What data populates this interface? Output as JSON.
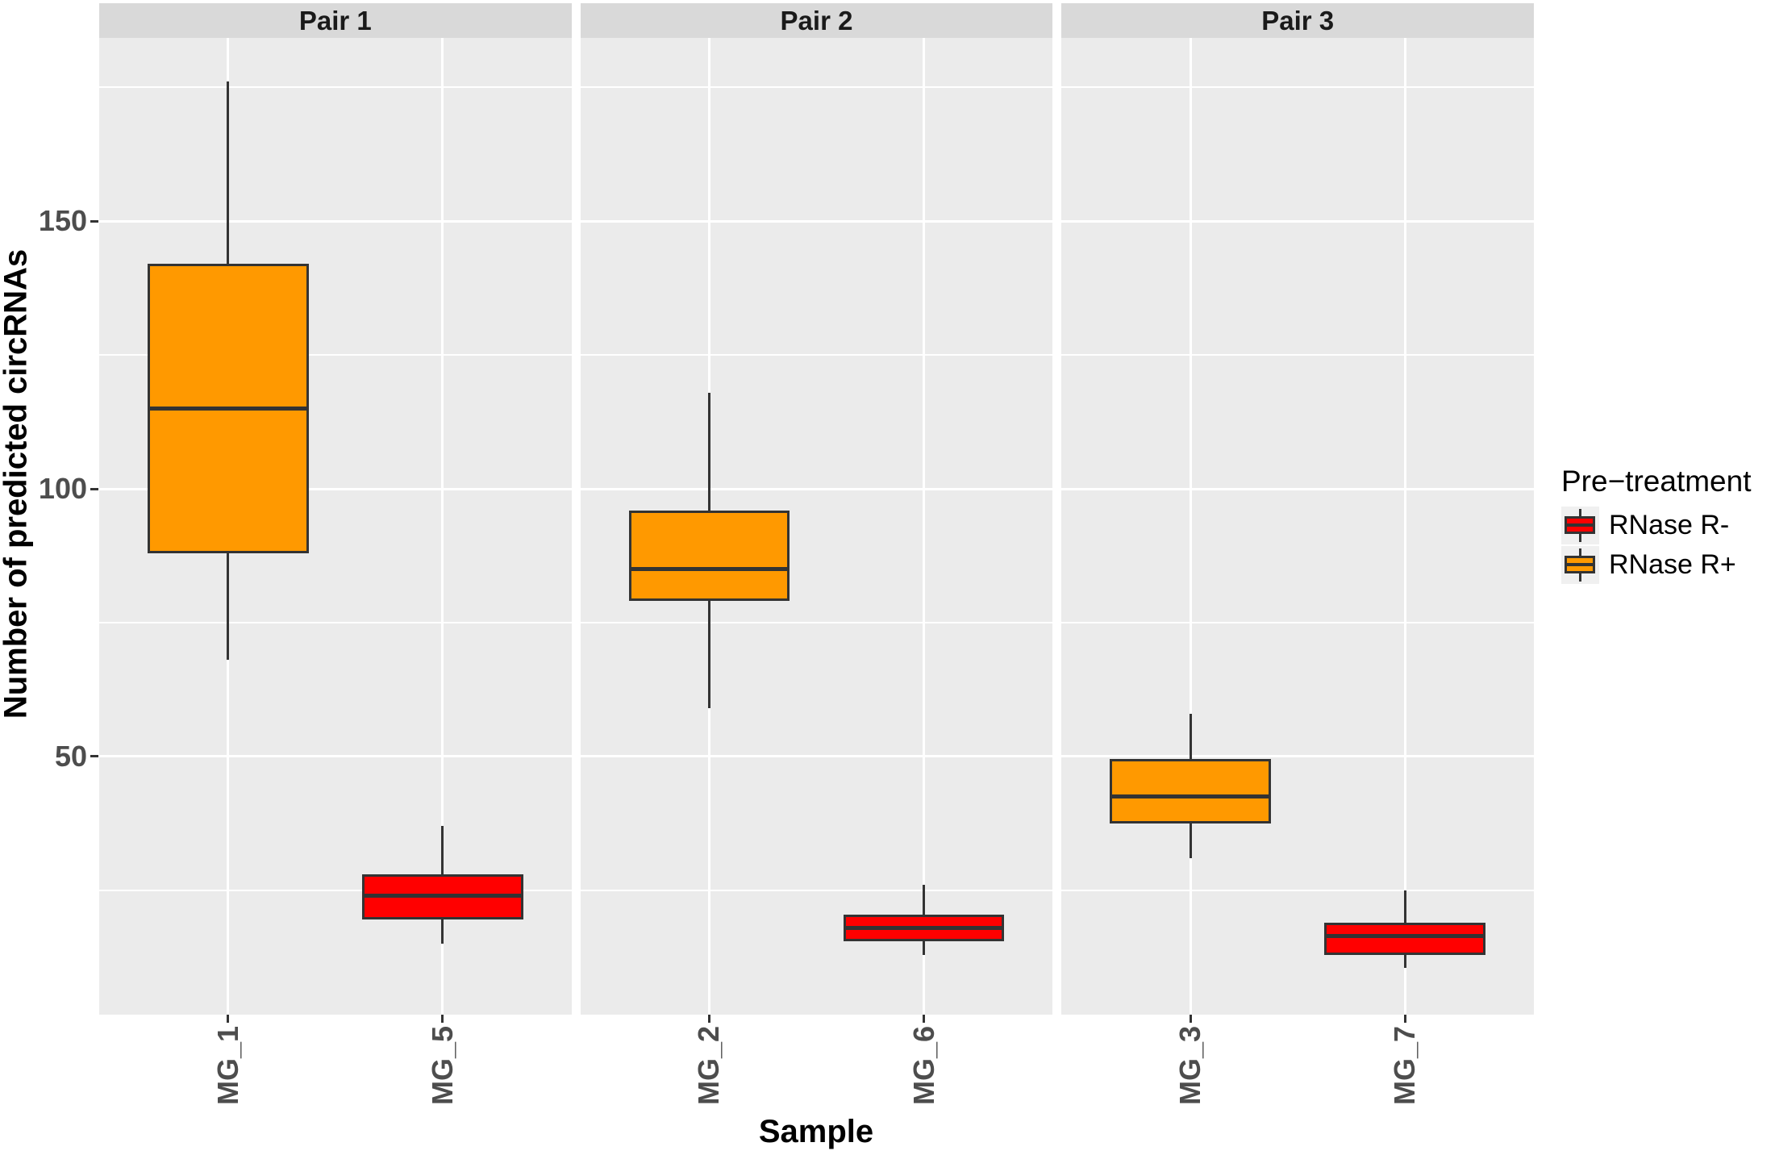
{
  "chart_data": {
    "type": "boxplot",
    "title": "",
    "xlabel": "Sample",
    "ylabel": "Number of predicted circRNAs",
    "y_axis": {
      "ticks": [
        150,
        100,
        50
      ],
      "minor_gridlines": [
        175,
        125,
        75,
        25
      ],
      "visible_range": [
        1.8,
        184.2
      ]
    },
    "legend": {
      "title": "Pre−treatment",
      "position": "right",
      "items": [
        {
          "label": "RNase R-",
          "color": "#FF0000"
        },
        {
          "label": "RNase R+",
          "color": "#FF9900"
        }
      ]
    },
    "group_colors": {
      "RNase R-": "#FF0000",
      "RNase R+": "#FF9900"
    },
    "style": {
      "panel_background": "#EBEBEB",
      "strip_background": "#D9D9D9",
      "gridline_color": "#FFFFFF",
      "box_outline": "#333333",
      "axis_text_color": "#4D4D4D",
      "legend_key_background": "#F0F0F0"
    },
    "facets": [
      {
        "label": "Pair 1",
        "boxes": [
          {
            "sample": "MG_1",
            "group": "RNase R+",
            "whisker_low": 68,
            "q1": 88,
            "median": 115,
            "q3": 142,
            "whisker_high": 176
          },
          {
            "sample": "MG_5",
            "group": "RNase R-",
            "whisker_low": 15,
            "q1": 19.5,
            "median": 24,
            "q3": 28,
            "whisker_high": 37
          }
        ]
      },
      {
        "label": "Pair 2",
        "boxes": [
          {
            "sample": "MG_2",
            "group": "RNase R+",
            "whisker_low": 59,
            "q1": 79,
            "median": 85,
            "q3": 96,
            "whisker_high": 118
          },
          {
            "sample": "MG_6",
            "group": "RNase R-",
            "whisker_low": 13,
            "q1": 15.5,
            "median": 18,
            "q3": 20.5,
            "whisker_high": 26
          }
        ]
      },
      {
        "label": "Pair 3",
        "boxes": [
          {
            "sample": "MG_3",
            "group": "RNase R+",
            "whisker_low": 31,
            "q1": 37.5,
            "median": 42.5,
            "q3": 49.5,
            "whisker_high": 58
          },
          {
            "sample": "MG_7",
            "group": "RNase R-",
            "whisker_low": 10.5,
            "q1": 13,
            "median": 16.5,
            "q3": 19,
            "whisker_high": 25
          }
        ]
      }
    ]
  }
}
